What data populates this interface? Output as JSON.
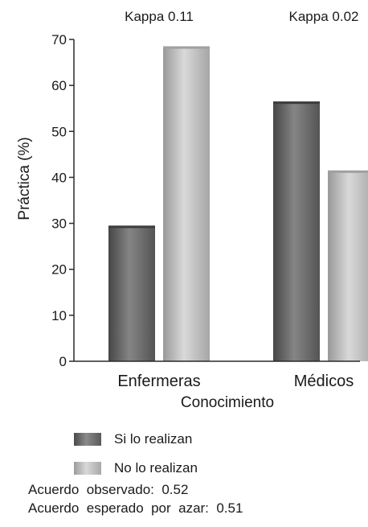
{
  "chart_data": {
    "type": "bar",
    "categories": [
      "Enfermeras",
      "Médicos"
    ],
    "series": [
      {
        "name": "Si lo realizan",
        "values": [
          29.5,
          56.5
        ],
        "color": "#5c5c5c"
      },
      {
        "name": "No lo realizan",
        "values": [
          68.5,
          41.5
        ],
        "color": "#c4c4c4"
      }
    ],
    "annotations": [
      "Kappa 0.11",
      "Kappa 0.02"
    ],
    "xlabel": "Conocimiento",
    "ylabel": "Práctica (%)",
    "ylim": [
      0,
      70
    ],
    "yticks": [
      0,
      10,
      20,
      30,
      40,
      50,
      60,
      70
    ],
    "grid": false,
    "legend_position": "bottom-left"
  },
  "notes": {
    "observed": "Acuerdo  observado:  0.52",
    "expected": "Acuerdo  esperado  por  azar:  0.51"
  }
}
